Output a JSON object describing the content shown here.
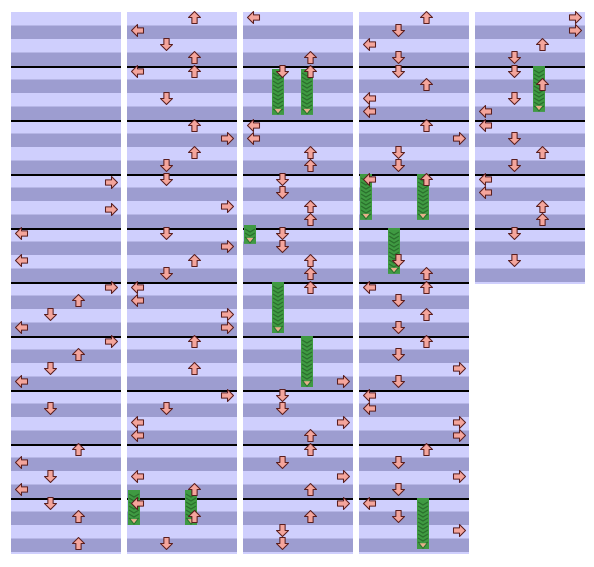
{
  "chart": {
    "title": "",
    "columns": 5,
    "measures_per_column": [
      10,
      10,
      10,
      10,
      5
    ],
    "lanes": [
      "left",
      "down",
      "up",
      "right"
    ],
    "icons": {
      "left": "left-arrow-icon",
      "down": "down-arrow-icon",
      "up": "up-arrow-icon",
      "right": "right-arrow-icon",
      "hold": "hold-freeze-icon"
    },
    "colors": {
      "background": "#ffffff",
      "row_light": "#cfcffd",
      "row_dark": "#9d9dd0",
      "measure_line": "#000000",
      "arrow_fill": "#f4a59c",
      "arrow_stroke": "#5a1e1e",
      "hold_fill": "#3f9a42",
      "hold_dark": "#2a6f2d",
      "hold_head": "#e8b08a"
    }
  }
}
